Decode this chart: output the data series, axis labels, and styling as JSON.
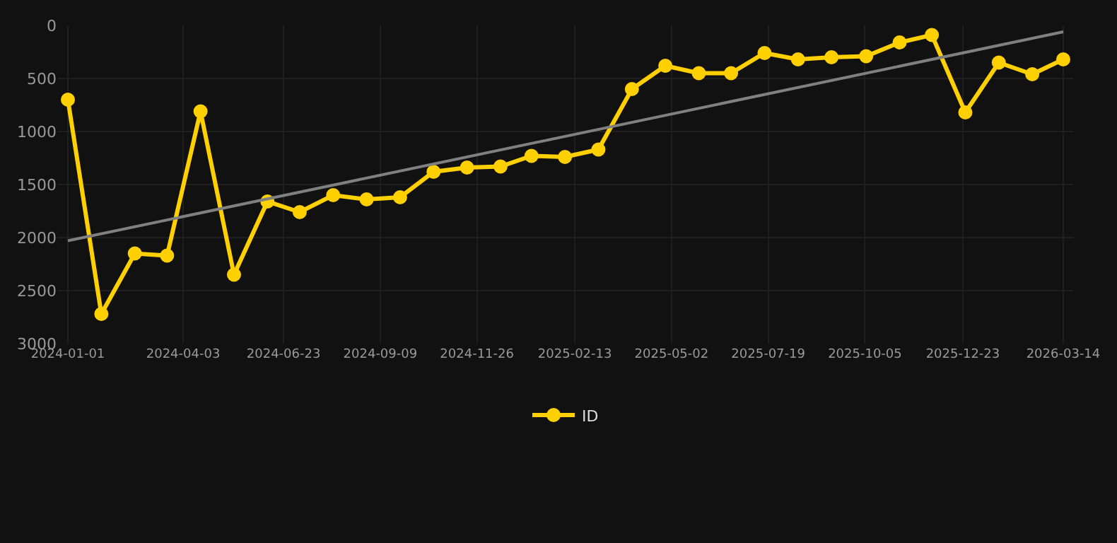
{
  "chart_data": {
    "type": "line",
    "x": [
      "2024-01-01",
      "2024-01-28",
      "2024-02-24",
      "2024-03-21",
      "2024-04-17",
      "2024-05-14",
      "2024-06-10",
      "2024-07-06",
      "2024-08-02",
      "2024-08-29",
      "2024-09-25",
      "2024-10-22",
      "2024-11-18",
      "2024-12-15",
      "2025-01-09",
      "2025-02-05",
      "2025-03-04",
      "2025-03-31",
      "2025-04-27",
      "2025-05-24",
      "2025-06-19",
      "2025-07-16",
      "2025-08-12",
      "2025-09-08",
      "2025-10-06",
      "2025-11-02",
      "2025-11-28",
      "2025-12-25",
      "2026-01-21",
      "2026-02-17",
      "2026-03-14"
    ],
    "series": [
      {
        "name": "ID",
        "color": "#ffd000",
        "marker": "circle",
        "values": [
          700,
          2720,
          2150,
          2170,
          810,
          2350,
          1660,
          1760,
          1600,
          1640,
          1620,
          1380,
          1340,
          1330,
          1230,
          1240,
          1170,
          600,
          380,
          450,
          450,
          260,
          320,
          300,
          290,
          160,
          90,
          820,
          350,
          460,
          320
        ]
      },
      {
        "type": "line",
        "color": "#808080",
        "marker": "none",
        "x": [
          "2024-01-01",
          "2026-03-14"
        ],
        "values": [
          2030,
          60
        ]
      }
    ],
    "xlim": [
      "2023-12-24",
      "2026-03-22"
    ],
    "xticks": [
      "2024-01-01",
      "2024-04-03",
      "2024-06-23",
      "2024-09-09",
      "2024-11-26",
      "2025-02-13",
      "2025-05-02",
      "2025-07-19",
      "2025-10-05",
      "2025-12-23",
      "2026-03-14"
    ],
    "ylim": [
      3000,
      0
    ],
    "yticks": [
      0,
      500,
      1000,
      1500,
      2000,
      2500,
      3000
    ],
    "grid": true,
    "legend": "bottom"
  }
}
